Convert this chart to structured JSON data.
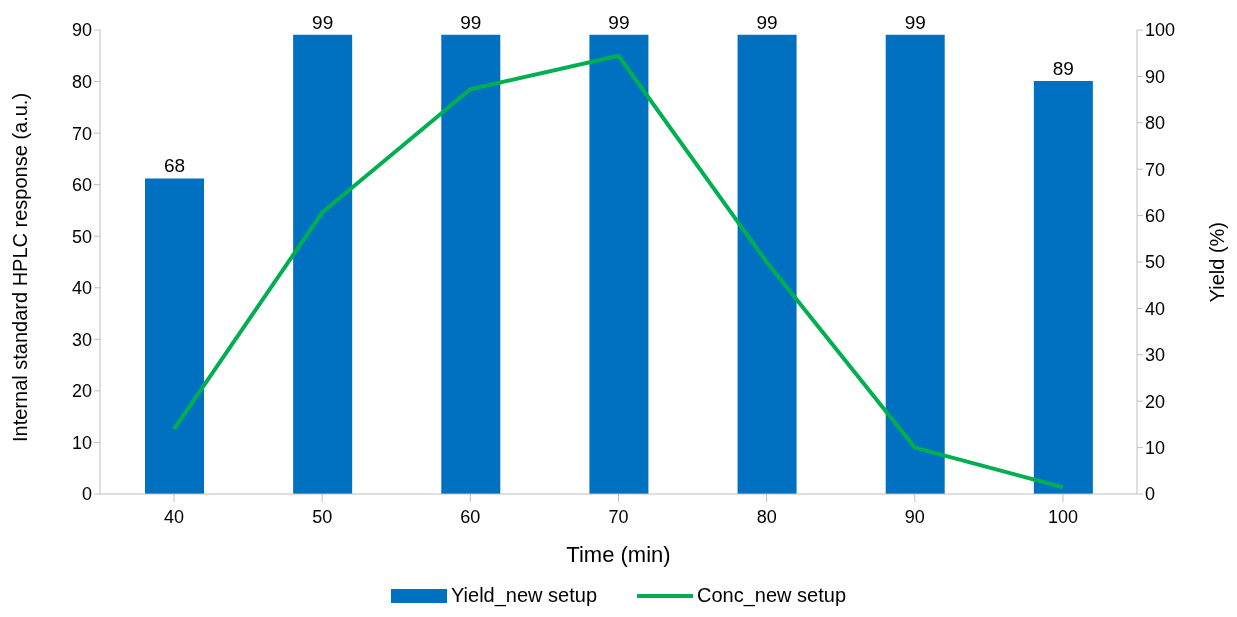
{
  "chart_data": {
    "type": "bar",
    "xlabel": "Time (min)",
    "ylabel": "Internal standard HPLC response (a.u.)",
    "y2label": "Yield (%)",
    "categories": [
      "40",
      "50",
      "60",
      "70",
      "80",
      "90",
      "100"
    ],
    "series": [
      {
        "name": "Yield_new setup",
        "axis": "y2",
        "color": "#0070c0",
        "data_labels": true,
        "values": [
          68,
          99,
          99,
          99,
          99,
          99,
          89
        ]
      },
      {
        "name": "Conc_new setup",
        "type": "line",
        "axis": "y",
        "color": "#00b050",
        "values": [
          12.6,
          54.6,
          78.5,
          85,
          45,
          9,
          1.3
        ]
      }
    ],
    "ylim": [
      0,
      90
    ],
    "yticks": [
      0,
      10,
      20,
      30,
      40,
      50,
      60,
      70,
      80,
      90
    ],
    "y2lim": [
      0,
      100
    ],
    "y2ticks": [
      0,
      10,
      20,
      30,
      40,
      50,
      60,
      70,
      80,
      90,
      100
    ],
    "grid": false,
    "legend": "bottom",
    "marker": "none",
    "line_style": "solid"
  }
}
